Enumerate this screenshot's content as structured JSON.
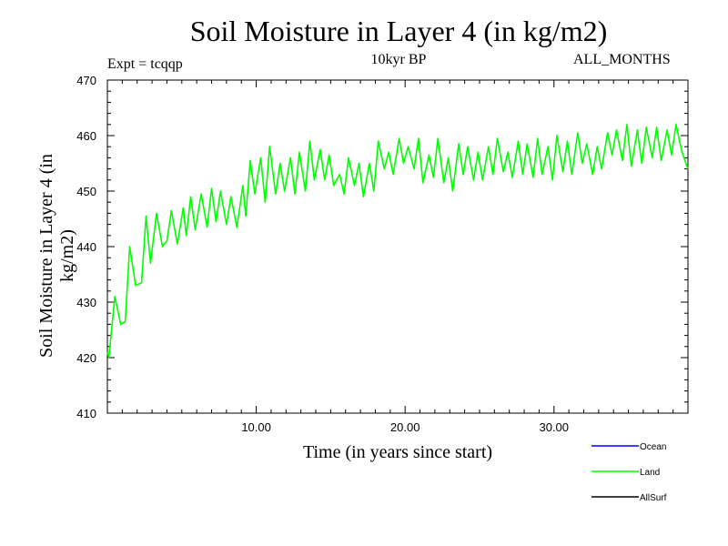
{
  "chart_data": {
    "type": "line",
    "title": "Soil Moisture in Layer 4 (in kg/m2)",
    "subtitle": "10kyr BP",
    "experiment_label": "Expt = tcqqp",
    "months_label": "ALL_MONTHS",
    "xlabel": "Time (in years since start)",
    "ylabel": "Soil Moisture in Layer 4 (in kg/m2)",
    "xlim": [
      0.0,
      39.0
    ],
    "ylim": [
      410,
      470
    ],
    "x_ticks": [
      10.0,
      20.0,
      30.0
    ],
    "x_tick_labels": [
      "10.00",
      "20.00",
      "30.00"
    ],
    "y_ticks": [
      410,
      420,
      430,
      440,
      450,
      460,
      470
    ],
    "y_tick_labels": [
      "410",
      "420",
      "430",
      "440",
      "450",
      "460",
      "470"
    ],
    "legend": [
      {
        "name": "Ocean",
        "color": "#0000ff"
      },
      {
        "name": "Land",
        "color": "#00ff00"
      },
      {
        "name": "AllSurf",
        "color": "#000000"
      }
    ],
    "series": [
      {
        "name": "Land",
        "color": "#00ff00",
        "sampling": "annual peak/trough values",
        "x": [
          0.0,
          0.1,
          0.5,
          0.9,
          1.2,
          1.5,
          1.9,
          2.3,
          2.6,
          2.9,
          3.3,
          3.7,
          4.0,
          4.3,
          4.7,
          5.1,
          5.3,
          5.6,
          5.9,
          6.3,
          6.7,
          7.0,
          7.3,
          7.6,
          8.0,
          8.3,
          8.7,
          9.1,
          9.3,
          9.6,
          9.9,
          10.3,
          10.6,
          10.9,
          11.3,
          11.6,
          11.9,
          12.3,
          12.6,
          12.9,
          13.3,
          13.6,
          13.9,
          14.3,
          14.6,
          14.9,
          15.2,
          15.6,
          15.9,
          16.2,
          16.6,
          16.9,
          17.2,
          17.6,
          17.9,
          18.2,
          18.6,
          18.9,
          19.2,
          19.6,
          19.9,
          20.2,
          20.6,
          20.9,
          21.2,
          21.6,
          21.9,
          22.2,
          22.6,
          22.9,
          23.2,
          23.6,
          23.9,
          24.2,
          24.6,
          24.9,
          25.2,
          25.6,
          25.9,
          26.2,
          26.6,
          26.9,
          27.2,
          27.6,
          27.9,
          28.2,
          28.6,
          28.9,
          29.2,
          29.6,
          29.9,
          30.2,
          30.6,
          30.9,
          31.2,
          31.6,
          31.9,
          32.2,
          32.6,
          32.9,
          33.2,
          33.6,
          33.9,
          34.2,
          34.6,
          34.9,
          35.2,
          35.6,
          35.9,
          36.2,
          36.6,
          36.9,
          37.2,
          37.6,
          37.9,
          38.2,
          38.6,
          39.0
        ],
        "values": [
          421,
          420,
          431,
          426,
          426.5,
          440,
          433,
          433.5,
          445.5,
          437,
          446,
          440,
          441,
          446.5,
          440.5,
          447,
          442,
          449,
          443,
          449.5,
          443.5,
          450.5,
          444.5,
          450,
          444,
          449,
          443.5,
          451,
          445.5,
          455.5,
          449.5,
          456,
          448,
          458,
          449.5,
          455,
          450,
          456,
          449.5,
          457,
          450,
          459,
          452,
          457.5,
          452,
          456.5,
          451,
          453,
          449.5,
          456,
          451,
          455,
          449,
          455,
          450,
          459,
          454,
          457,
          453,
          459.5,
          455,
          458,
          454,
          459.5,
          451.5,
          456.5,
          452.5,
          459.5,
          451.5,
          456,
          450,
          458.5,
          453,
          458,
          452,
          457,
          452,
          458,
          453,
          459.5,
          453.5,
          457,
          452.5,
          459,
          453,
          458.5,
          452.5,
          459.5,
          453,
          458,
          452,
          460,
          453.5,
          459,
          453,
          460.5,
          455,
          458.5,
          453,
          458,
          454,
          460.5,
          456.5,
          461,
          455.5,
          462,
          454.5,
          461,
          455,
          461.5,
          456,
          461.5,
          455.5,
          461,
          456.5,
          462,
          457,
          454
        ]
      }
    ]
  }
}
